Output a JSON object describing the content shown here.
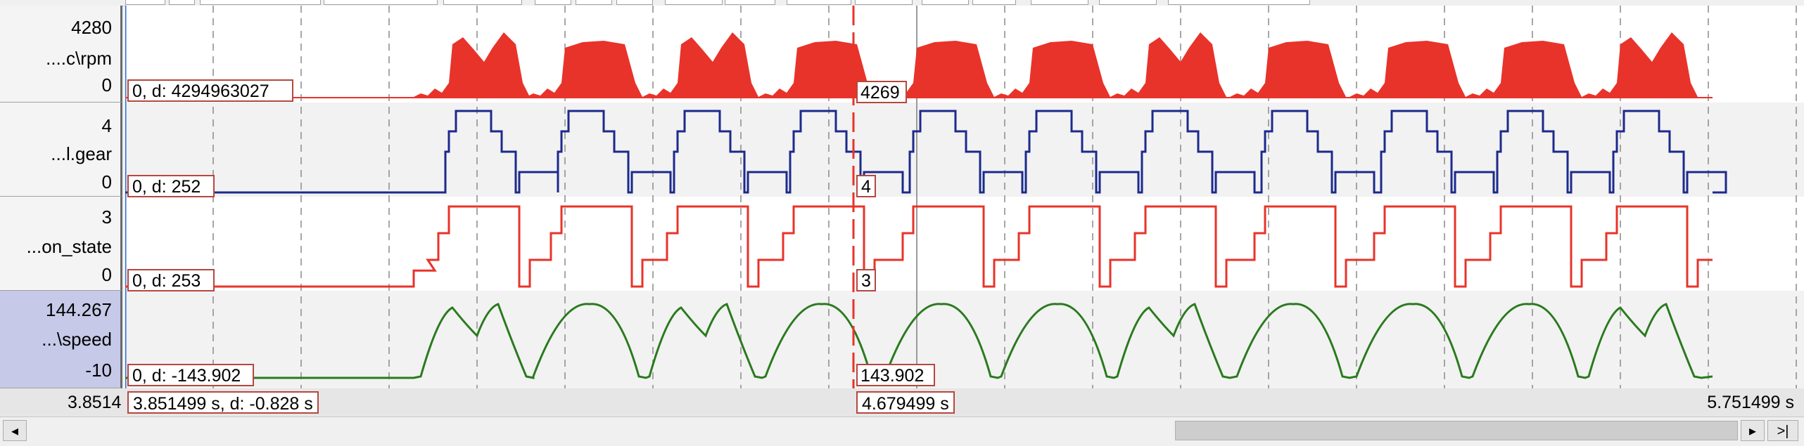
{
  "lanes": [
    {
      "name": "....c\\rpm",
      "max": "4280",
      "min": "0",
      "start_info": "0,  d: 4294963027",
      "cursor_value": "4269",
      "color": "#e8332a",
      "kind": "area"
    },
    {
      "name": "...l.gear",
      "max": "4",
      "min": "0",
      "start_info": "0,  d: 252",
      "cursor_value": "4",
      "color": "#1c2a8c",
      "kind": "step"
    },
    {
      "name": "...on_state",
      "max": "3",
      "min": "0",
      "start_info": "0,  d: 253",
      "cursor_value": "3",
      "color": "#e8332a",
      "kind": "step"
    },
    {
      "name": "...\\speed",
      "max": "144.267",
      "min": "-10",
      "start_info": "0,  d: -143.902",
      "cursor_value": "143.902",
      "color": "#2a7a1e",
      "kind": "line",
      "selected": true
    }
  ],
  "status": {
    "left_time": "3.8514",
    "range_info": "3.851499 s,  d: -0.828 s",
    "cursor_time": "4.679499 s",
    "end_time": "5.751499 s"
  },
  "scroll": {
    "left_icon": "scroll-left-icon",
    "right_icon": "scroll-right-icon",
    "end_icon": "scroll-end-icon",
    "end_label": ">|"
  },
  "colors": {
    "grid": "#8a8a8a",
    "cursor": "#e8332a",
    "selected_lane": "#c6c9e8"
  }
}
